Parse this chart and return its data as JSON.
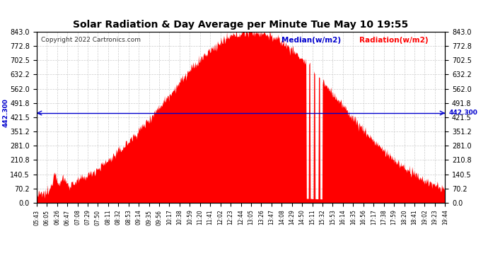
{
  "title": "Solar Radiation & Day Average per Minute Tue May 10 19:55",
  "copyright": "Copyright 2022 Cartronics.com",
  "median_value": 442.3,
  "median_label": "442.300",
  "y_ticks": [
    0.0,
    70.2,
    140.5,
    210.8,
    281.0,
    351.2,
    421.5,
    491.8,
    562.0,
    632.2,
    702.5,
    772.8,
    843.0
  ],
  "y_max": 843.0,
  "y_min": 0.0,
  "background_color": "#ffffff",
  "fill_color": "#ff0000",
  "median_color": "#0000cd",
  "grid_color": "#cccccc",
  "title_color": "#000000",
  "legend_median_color": "#0000cd",
  "legend_radiation_color": "#ff0000",
  "x_labels": [
    "05:43",
    "06:05",
    "06:26",
    "06:47",
    "07:08",
    "07:29",
    "07:50",
    "08:11",
    "08:32",
    "08:53",
    "09:14",
    "09:35",
    "09:56",
    "10:17",
    "10:38",
    "10:59",
    "11:20",
    "11:41",
    "12:02",
    "12:23",
    "12:44",
    "13:05",
    "13:26",
    "13:47",
    "14:08",
    "14:29",
    "14:50",
    "15:11",
    "15:32",
    "15:53",
    "16:14",
    "16:35",
    "16:56",
    "17:17",
    "17:38",
    "17:59",
    "18:20",
    "18:41",
    "19:02",
    "19:23",
    "19:44"
  ]
}
